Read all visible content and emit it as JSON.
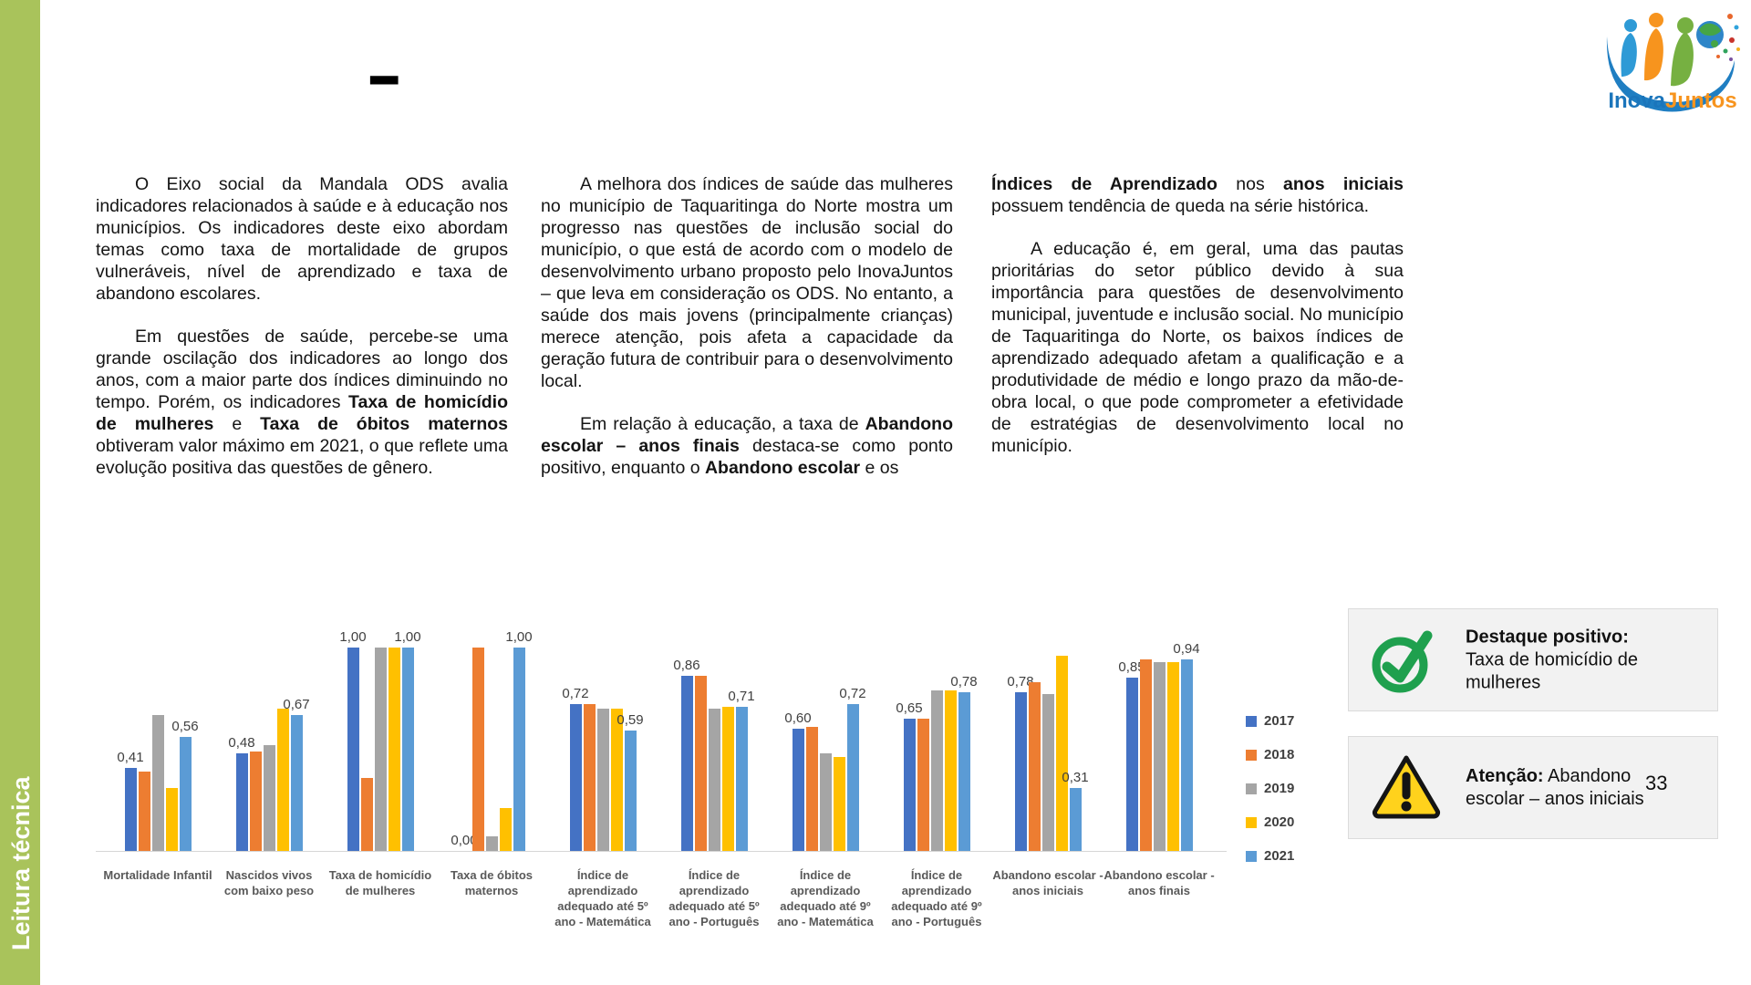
{
  "page": {
    "number": "33",
    "sidebar_label": "Leitura técnica",
    "title_dash": "–"
  },
  "logo": {
    "part1": "Inova",
    "part2": "Juntos",
    "blue": "#1B75BB",
    "orange": "#F7941E"
  },
  "columns": [
    {
      "paragraphs": [
        {
          "indent": true,
          "segments": [
            {
              "t": "O Eixo social da Mandala ODS avalia indicadores relacionados à saúde e à educação nos municípios. Os indicadores deste eixo abordam temas como taxa de mortalidade de grupos vulneráveis, nível de aprendizado e taxa de abandono escolares.",
              "b": false
            }
          ]
        },
        {
          "indent": true,
          "segments": [
            {
              "t": "Em questões de saúde, percebe-se uma grande oscilação dos indicadores ao longo dos anos, com a maior parte dos índices diminuindo no tempo. Porém, os indicadores ",
              "b": false
            },
            {
              "t": "Taxa de homicídio de mulheres",
              "b": true
            },
            {
              "t": " e ",
              "b": false
            },
            {
              "t": "Taxa de óbitos maternos",
              "b": true
            },
            {
              "t": " obtiveram valor máximo em 2021, o que reflete uma evolução positiva das questões de gênero.",
              "b": false
            }
          ]
        }
      ]
    },
    {
      "paragraphs": [
        {
          "indent": true,
          "segments": [
            {
              "t": "A melhora dos índices de saúde das mulheres no município de Taquaritinga do Norte mostra um progresso nas questões de inclusão social do município, o que está de acordo com o modelo de desenvolvimento urbano proposto pelo InovaJuntos – que leva em consideração os ODS. No entanto, a saúde dos mais jovens (principalmente crianças) merece atenção, pois afeta a capacidade da geração futura de contribuir para o desenvolvimento local.",
              "b": false
            }
          ]
        },
        {
          "indent": true,
          "segments": [
            {
              "t": "Em relação à educação, a taxa de ",
              "b": false
            },
            {
              "t": "Abandono escolar – anos finais",
              "b": true
            },
            {
              "t": " destaca-se como ponto positivo, enquanto o ",
              "b": false
            },
            {
              "t": "Abandono escolar",
              "b": true
            },
            {
              "t": " e os",
              "b": false
            }
          ]
        }
      ]
    },
    {
      "paragraphs": [
        {
          "indent": false,
          "segments": [
            {
              "t": "Índices de Aprendizado",
              "b": true
            },
            {
              "t": " nos ",
              "b": false
            },
            {
              "t": "anos iniciais",
              "b": true
            },
            {
              "t": " possuem tendência de queda na série histórica.",
              "b": false
            }
          ]
        },
        {
          "indent": true,
          "segments": [
            {
              "t": "A educação é, em geral, uma das pautas prioritárias do setor público devido à sua importância para questões de desenvolvimento municipal, juventude e inclusão social. No município de Taquaritinga do Norte, os baixos índices de aprendizado adequado afetam a qualificação e a produtividade de médio e longo prazo da mão-de-obra local, o que pode comprometer a efetividade de estratégias de desenvolvimento local no município.",
              "b": false
            }
          ]
        }
      ]
    }
  ],
  "callouts": [
    {
      "icon": "check-icon",
      "title": "Destaque positivo:",
      "text": " Taxa de homicídio de mulheres",
      "icon_color": "#1FA04E"
    },
    {
      "icon": "warning-icon",
      "title": "Atenção:",
      "text": " Abandono escolar – anos iniciais",
      "icon_color": "#FFD21C"
    }
  ],
  "chart_data": {
    "type": "bar",
    "title": "",
    "xlabel": "",
    "ylabel": "",
    "ylim": [
      0,
      1
    ],
    "grid": false,
    "legend_position": "right",
    "categories": [
      "Mortalidade Infantil",
      "Nascidos vivos com baixo peso",
      "Taxa de homicídio de mulheres",
      "Taxa de óbitos maternos",
      "Índice de aprendizado adequado até 5º ano - Matemática",
      "Índice de aprendizado adequado até 5º ano - Português",
      "Índice de aprendizado adequado até 9º ano - Matemática",
      "Índice de aprendizado adequado até 9º ano - Português",
      "Abandono escolar - anos iniciais",
      "Abandono escolar - anos finais"
    ],
    "series": [
      {
        "name": "2017",
        "color": "#4472C4",
        "values": [
          0.41,
          0.48,
          1.0,
          0.0,
          0.72,
          0.86,
          0.6,
          0.65,
          0.78,
          0.85
        ],
        "labels": [
          "0,41",
          "0,48",
          "1,00",
          "0,00",
          "0,72",
          "0,86",
          "0,60",
          "0,65",
          "0,78",
          "0,85"
        ]
      },
      {
        "name": "2018",
        "color": "#ED7D31",
        "values": [
          0.39,
          0.49,
          0.36,
          1.0,
          0.72,
          0.86,
          0.61,
          0.65,
          0.83,
          0.94
        ],
        "labels": null
      },
      {
        "name": "2019",
        "color": "#A5A5A5",
        "values": [
          0.67,
          0.52,
          1.0,
          0.07,
          0.7,
          0.7,
          0.48,
          0.79,
          0.77,
          0.93
        ],
        "labels": null
      },
      {
        "name": "2020",
        "color": "#FFC000",
        "values": [
          0.31,
          0.7,
          1.0,
          0.21,
          0.7,
          0.71,
          0.46,
          0.79,
          0.96,
          0.93
        ],
        "labels": null
      },
      {
        "name": "2021",
        "color": "#5B9BD5",
        "values": [
          0.56,
          0.67,
          1.0,
          1.0,
          0.59,
          0.71,
          0.72,
          0.78,
          0.31,
          0.94
        ],
        "labels": [
          "0,56",
          "0,67",
          "1,00",
          "1,00",
          "0,59",
          "0,71",
          "0,72",
          "0,78",
          "0,31",
          "0,94"
        ]
      }
    ]
  },
  "theme": {
    "sidebar_green": "#A9C35B",
    "axis_line": "#D6D6D6",
    "category_label_color": "#595959",
    "value_label_color": "#404040",
    "callout_bg": "#F2F2F2"
  }
}
